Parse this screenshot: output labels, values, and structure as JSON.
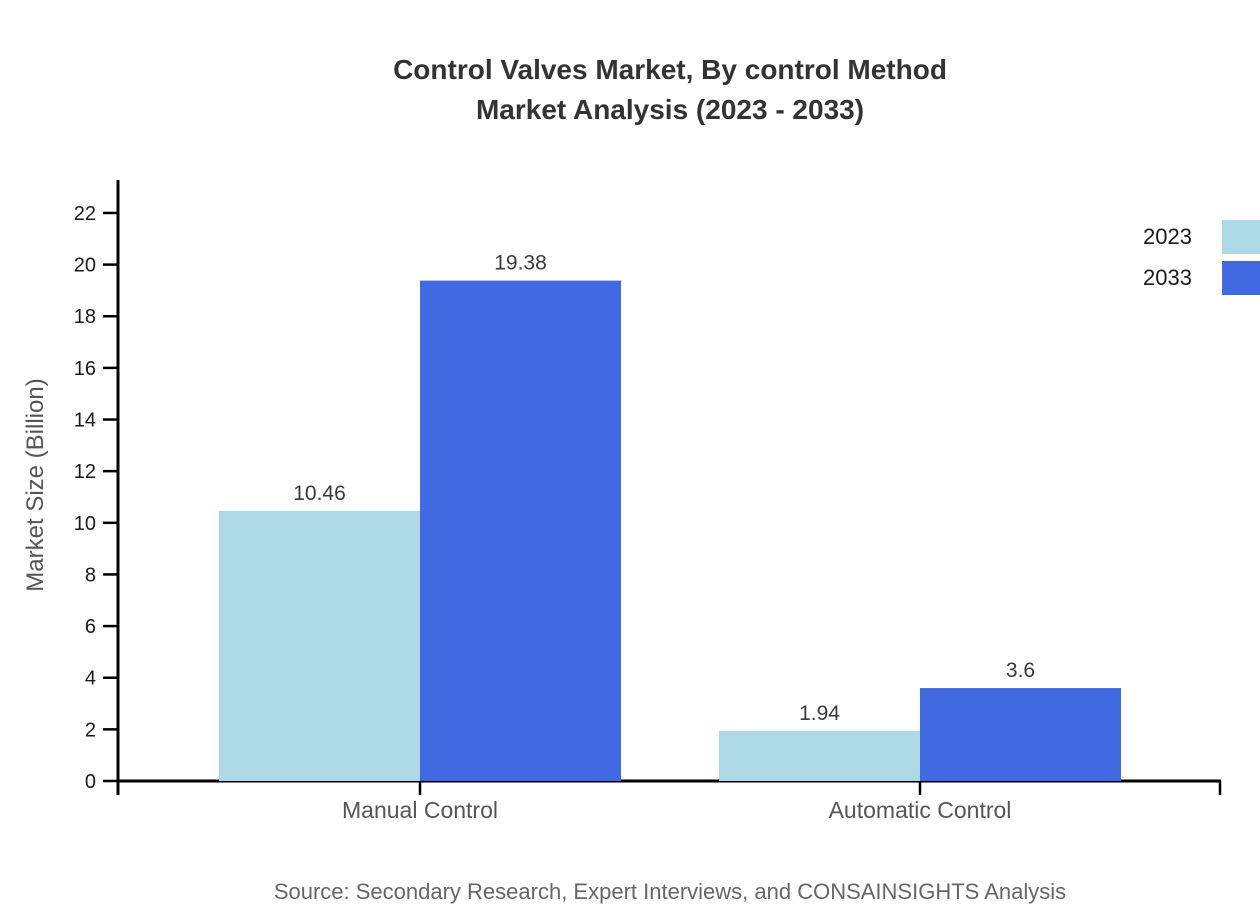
{
  "chart_data": {
    "type": "bar",
    "title": "Control Valves Market, By control Method Market Analysis (2023 - 2033)",
    "title_lines": [
      "Control Valves Market, By control Method",
      "Market Analysis (2023 - 2033)"
    ],
    "categories": [
      "Manual Control",
      "Automatic Control"
    ],
    "series": [
      {
        "name": "2023",
        "color": "#ADD8E6",
        "values": [
          10.46,
          1.94
        ],
        "labels": [
          "10.46",
          "1.94"
        ]
      },
      {
        "name": "2033",
        "color": "#4169E1",
        "values": [
          19.38,
          3.6
        ],
        "labels": [
          "19.38",
          "3.6"
        ]
      }
    ],
    "xlabel": "",
    "ylabel": "Market Size (Billion)",
    "ylim": [
      0,
      23
    ],
    "yticks": [
      0,
      2,
      4,
      6,
      8,
      10,
      12,
      14,
      16,
      18,
      20,
      22
    ],
    "grid": false,
    "legend_position": "top-right",
    "bar_value_labels": true
  },
  "footer": {
    "source": "Source: Secondary Research, Expert Interviews, and CONSAINSIGHTS Analysis"
  },
  "colors": {
    "axis": "#000000",
    "title_text": "#333333",
    "tick_label_text": "#1a1a1a",
    "category_label_text": "#555555",
    "value_label_text": "#3a3a3a",
    "y_axis_title_text": "#555555",
    "source_text": "#666666",
    "background": "#ffffff"
  }
}
